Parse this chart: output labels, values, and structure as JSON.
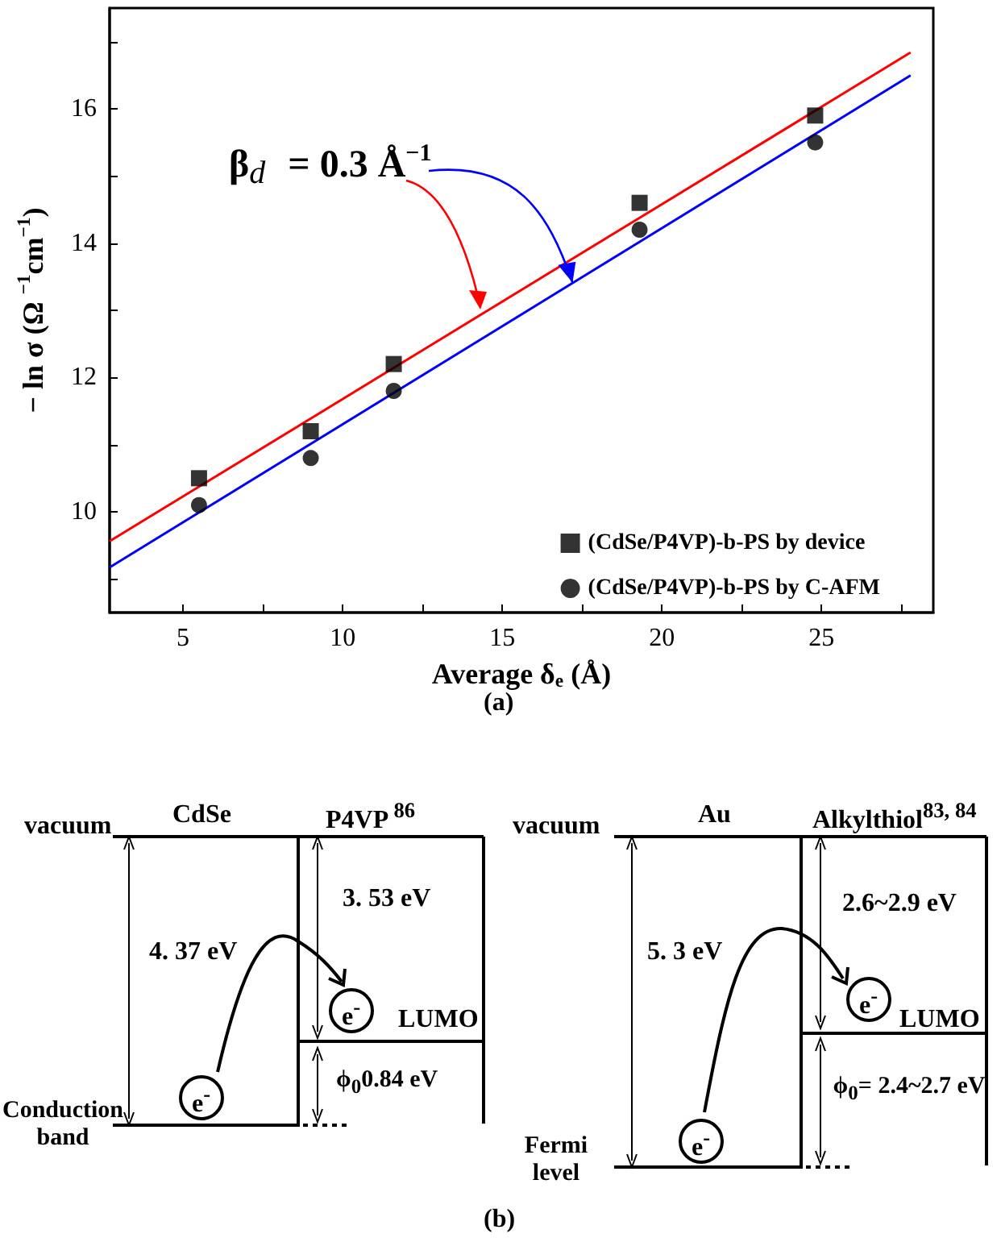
{
  "chart_data": [
    {
      "type": "scatter",
      "xlabel": "Average δ$_{e}$ (Å)",
      "ylabel": "− ln σ (Ω $^{−1}$cm$^{−1}$)",
      "annotations": [
        {
          "text": "β$_{d}$ = 0.3 Å$^{−1}$",
          "x": 17.2,
          "y": 13.41
        },
        "(a)"
      ],
      "xlim": [
        2.7,
        28.5
      ],
      "ylim": [
        8.5,
        17.5
      ],
      "xticks": [
        5,
        {
          "value": 7.5,
          "label": null
        },
        10,
        {
          "value": 12.5,
          "label": null
        },
        15,
        {
          "value": 17.5,
          "label": null
        },
        20,
        {
          "value": 22.5,
          "label": null
        },
        25,
        {
          "value": 27.5,
          "label": null
        }
      ],
      "yticks": [
        {
          "value": 9,
          "label": null
        },
        10,
        {
          "value": 11,
          "label": null
        },
        12,
        {
          "value": 13,
          "label": null
        },
        14,
        {
          "value": 15,
          "label": null
        },
        16,
        {
          "value": 17,
          "label": null
        }
      ],
      "grid": false,
      "legend": "bottom right",
      "series": [
        {
          "type": "scatter",
          "name": "(CdSe/P4VP)-b-PS by device",
          "color": "#000000",
          "marker": "square",
          "x": [
            5.5,
            9,
            11.6,
            19.3,
            24.8
          ],
          "values": [
            10.5,
            11.2,
            12.2,
            14.6,
            15.9
          ]
        },
        {
          "type": "scatter",
          "name": "(CdSe/P4VP)-b-PS by C-AFM",
          "color": "#000000",
          "marker": "circle",
          "x": [
            5.5,
            9,
            11.6,
            19.3,
            24.8
          ],
          "values": [
            10.1,
            10.8,
            11.8,
            14.2,
            15.5
          ]
        },
        {
          "type": "line",
          "color": "#ff0000",
          "marker": "none",
          "x": [
            2.73,
            27.76
          ],
          "values": [
            9.57,
            16.83
          ]
        },
        {
          "type": "line",
          "color": "#0000ff",
          "marker": "none",
          "x": [
            2.73,
            27.76
          ],
          "values": [
            9.18,
            16.49
          ]
        }
      ]
    },
    {
      "type": "other",
      "title": "(b)",
      "annotations": [
        "vacuum",
        "CdSe",
        "P4VP $^{86}$",
        "4. 37 eV",
        "3. 53 eV",
        "e$^{-}$",
        "LUMO",
        "ϕ$_{0}$0.84 eV",
        "e$^{-}$",
        "Conduction band",
        "vacuum",
        "Au",
        "Alkylthiol$^{83, 84}$",
        "2.6~2.9 eV",
        "5. 3 eV",
        "e$^{-}$",
        "LUMO",
        "ϕ$_{0}$= 2.4~2.7 eV",
        "e$^{-}$",
        "Fermi level"
      ]
    }
  ]
}
